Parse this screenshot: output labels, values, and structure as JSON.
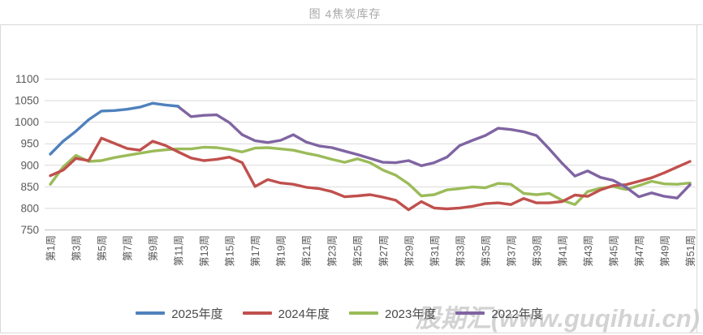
{
  "header": {
    "title": "图 4焦炭库存"
  },
  "watermark": "股期汇(www.guqihui.cn)",
  "chart_data": {
    "type": "line",
    "title": "图 4焦炭库存",
    "xlabel": "",
    "ylabel": "",
    "ylim": [
      750,
      1100
    ],
    "y_ticks": [
      1100,
      1050,
      1000,
      950,
      900,
      850,
      800,
      750
    ],
    "grid": true,
    "legend_position": "bottom",
    "weeks_total": 51,
    "x_tick_labels": [
      "第1周",
      "第3周",
      "第5周",
      "第7周",
      "第9周",
      "第11周",
      "第13周",
      "第15周",
      "第17周",
      "第19周",
      "第21周",
      "第23周",
      "第25周",
      "第27周",
      "第29周",
      "第31周",
      "第33周",
      "第35周",
      "第37周",
      "第39周",
      "第41周",
      "第43周",
      "第45周",
      "第47周",
      "第49周",
      "第51周"
    ],
    "series": [
      {
        "name": "2025年度",
        "color": "#4F81BD",
        "start_week": 1,
        "values": [
          925,
          955,
          978,
          1005,
          1025,
          1026,
          1029,
          1034,
          1043,
          1039,
          1036
        ]
      },
      {
        "name": "2024年度",
        "color": "#C0504D",
        "start_week": 1,
        "values": [
          875,
          888,
          915,
          910,
          962,
          950,
          938,
          934,
          955,
          945,
          930,
          916,
          910,
          913,
          918,
          905,
          850,
          866,
          858,
          855,
          848,
          845,
          838,
          826,
          828,
          831,
          825,
          818,
          796,
          815,
          800,
          798,
          800,
          804,
          810,
          812,
          808,
          822,
          812,
          812,
          815,
          830,
          827,
          842,
          852,
          854,
          862,
          870,
          882,
          895,
          908
        ]
      },
      {
        "name": "2023年度",
        "color": "#9BBB59",
        "start_week": 1,
        "values": [
          855,
          895,
          922,
          908,
          910,
          917,
          922,
          927,
          932,
          935,
          937,
          937,
          941,
          940,
          936,
          930,
          939,
          940,
          937,
          934,
          927,
          921,
          913,
          906,
          914,
          905,
          888,
          876,
          856,
          828,
          831,
          842,
          845,
          849,
          847,
          857,
          855,
          834,
          831,
          834,
          818,
          808,
          838,
          846,
          850,
          843,
          852,
          862,
          856,
          855,
          858
        ]
      },
      {
        "name": "2022年度",
        "color": "#8064A2",
        "start_week": 11,
        "values": [
          1035,
          1012,
          1015,
          1016,
          998,
          970,
          956,
          952,
          957,
          970,
          953,
          944,
          940,
          932,
          924,
          915,
          906,
          905,
          910,
          898,
          905,
          918,
          945,
          957,
          968,
          985,
          982,
          977,
          968,
          937,
          904,
          874,
          886,
          871,
          864,
          848,
          826,
          835,
          827,
          823,
          854
        ]
      }
    ]
  }
}
